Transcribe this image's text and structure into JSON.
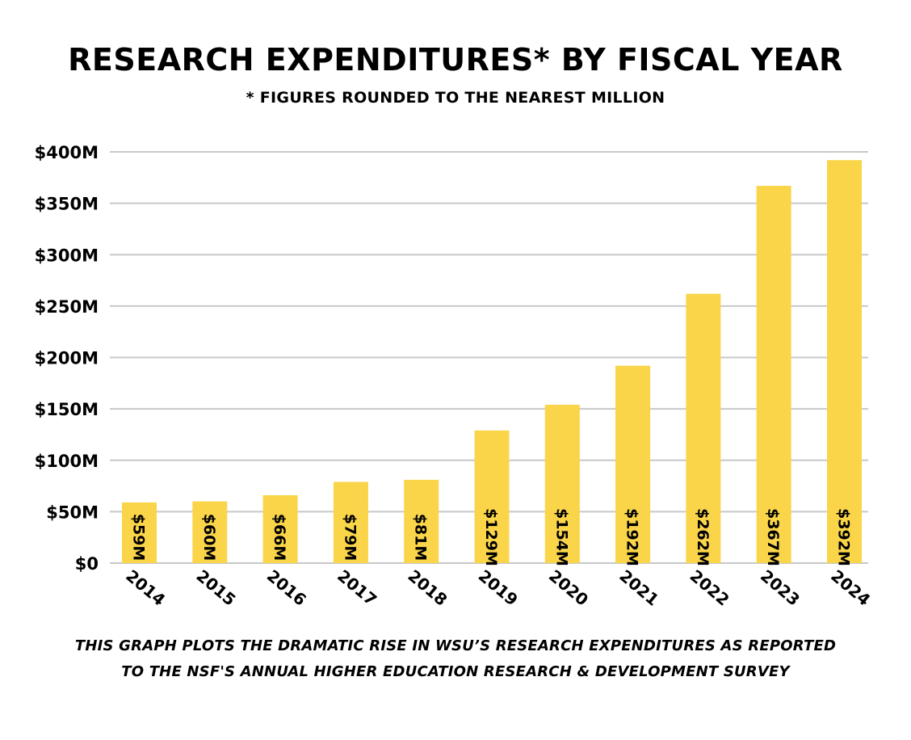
{
  "chart_data": {
    "type": "bar",
    "title": "RESEARCH EXPENDITURES* BY FISCAL YEAR",
    "subtitle": "* FIGURES ROUNDED TO THE NEAREST MILLION",
    "categories": [
      "2014",
      "2015",
      "2016",
      "2017",
      "2018",
      "2019",
      "2020",
      "2021",
      "2022",
      "2023",
      "2024"
    ],
    "values": [
      59,
      60,
      66,
      79,
      81,
      129,
      154,
      192,
      262,
      367,
      392
    ],
    "data_labels": [
      "$59M",
      "$60M",
      "$66M",
      "$79M",
      "$81M",
      "$129M",
      "$154M",
      "$192M",
      "$262M",
      "$367M",
      "$392M"
    ],
    "yticks": [
      0,
      50,
      100,
      150,
      200,
      250,
      300,
      350,
      400
    ],
    "ytick_labels": [
      "$0",
      "$50M",
      "$100M",
      "$150M",
      "$200M",
      "$250M",
      "$300M",
      "$350M",
      "$400M"
    ],
    "ylim": [
      0,
      400
    ],
    "xlabel": "",
    "ylabel": "",
    "grid": true,
    "bar_color": "#FAD54A",
    "grid_color": "#c8c8c8"
  },
  "footnote": {
    "line1": "THIS GRAPH PLOTS THE DRAMATIC RISE IN WSU’S RESEARCH EXPENDITURES AS REPORTED",
    "line2": "TO THE NSF'S ANNUAL HIGHER EDUCATION RESEARCH & DEVELOPMENT SURVEY"
  }
}
